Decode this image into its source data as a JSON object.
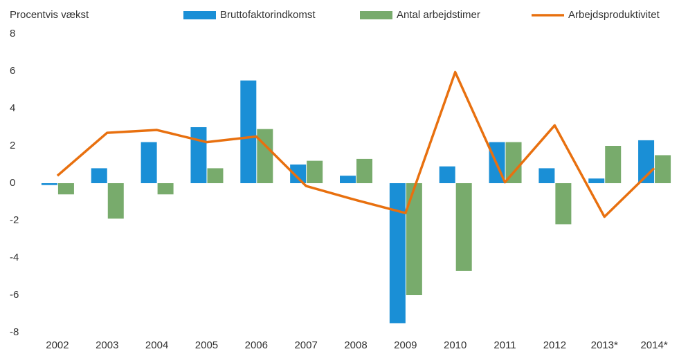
{
  "chart_data": {
    "type": "bar_line",
    "ylabel": "Procentvis vækst",
    "categories": [
      "2002",
      "2003",
      "2004",
      "2005",
      "2006",
      "2007",
      "2008",
      "2009",
      "2010",
      "2011",
      "2012",
      "2013*",
      "2014*"
    ],
    "series": [
      {
        "name": "Bruttofaktorindkomst",
        "type": "bar",
        "color": "#1a8fd6",
        "values": [
          -0.1,
          0.8,
          2.2,
          3.0,
          5.5,
          1.0,
          0.4,
          -7.5,
          0.9,
          2.2,
          0.8,
          0.25,
          2.3
        ]
      },
      {
        "name": "Antal arbejdstimer",
        "type": "bar",
        "color": "#78ab6c",
        "values": [
          -0.6,
          -1.9,
          -0.6,
          0.8,
          2.9,
          1.2,
          1.3,
          -6.0,
          -4.7,
          2.2,
          -2.2,
          2.0,
          1.5
        ]
      },
      {
        "name": "Arbejdsproduktivitet",
        "type": "line",
        "color": "#e8700f",
        "values": [
          0.4,
          2.7,
          2.85,
          2.2,
          2.5,
          -0.15,
          -0.9,
          -1.6,
          5.95,
          0.05,
          3.1,
          -1.8,
          0.8
        ]
      }
    ],
    "ylim": [
      -8,
      8
    ],
    "yticks": [
      -8,
      -6,
      -4,
      -2,
      0,
      2,
      4,
      6,
      8
    ],
    "grid": false
  }
}
